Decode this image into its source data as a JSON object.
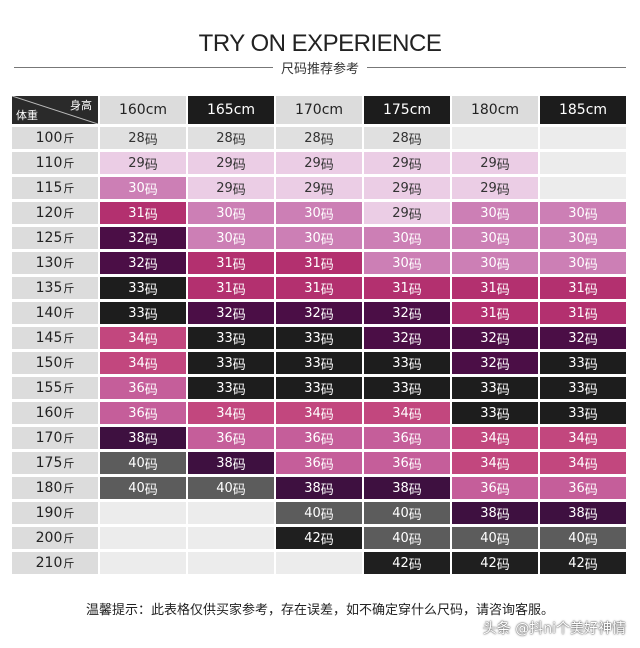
{
  "title": "TRY ON EXPERIENCE",
  "subtitle": "尺码推荐参考",
  "table": {
    "corner_top": "身高",
    "corner_bottom": "体重",
    "heights": [
      "160cm",
      "165cm",
      "170cm",
      "175cm",
      "180cm",
      "185cm"
    ],
    "weight_unit": "斤",
    "size_unit": "码",
    "weights": [
      "100",
      "110",
      "115",
      "120",
      "125",
      "130",
      "135",
      "140",
      "145",
      "150",
      "155",
      "160",
      "170",
      "175",
      "180",
      "190",
      "200",
      "210"
    ],
    "rows": [
      [
        "28",
        "28",
        "28",
        "28",
        "",
        ""
      ],
      [
        "29",
        "29",
        "29",
        "29",
        "29",
        ""
      ],
      [
        "30",
        "29",
        "29",
        "29",
        "29",
        ""
      ],
      [
        "31",
        "30",
        "30",
        "29",
        "30",
        "30"
      ],
      [
        "32",
        "30",
        "30",
        "30",
        "30",
        "30"
      ],
      [
        "32",
        "31",
        "31",
        "30",
        "30",
        "30"
      ],
      [
        "33",
        "31",
        "31",
        "31",
        "31",
        "31"
      ],
      [
        "33",
        "32",
        "32",
        "32",
        "31",
        "31"
      ],
      [
        "34",
        "33",
        "33",
        "32",
        "32",
        "32"
      ],
      [
        "34",
        "33",
        "33",
        "33",
        "32",
        "33"
      ],
      [
        "36",
        "33",
        "33",
        "33",
        "33",
        "33"
      ],
      [
        "36",
        "34",
        "34",
        "34",
        "33",
        "33"
      ],
      [
        "38",
        "36",
        "36",
        "36",
        "34",
        "34"
      ],
      [
        "40",
        "38",
        "36",
        "36",
        "34",
        "34"
      ],
      [
        "40",
        "40",
        "38",
        "38",
        "36",
        "36"
      ],
      [
        "",
        "",
        "40",
        "40",
        "38",
        "38"
      ],
      [
        "",
        "",
        "42",
        "40",
        "40",
        "40"
      ],
      [
        "",
        "",
        "",
        "42",
        "42",
        "42"
      ]
    ]
  },
  "footer": "温馨提示：此表格仅供买家参考，存在误差，如不确定穿什么尺码，请咨询客服。",
  "watermark": "头条 @抖ni个美好神情"
}
